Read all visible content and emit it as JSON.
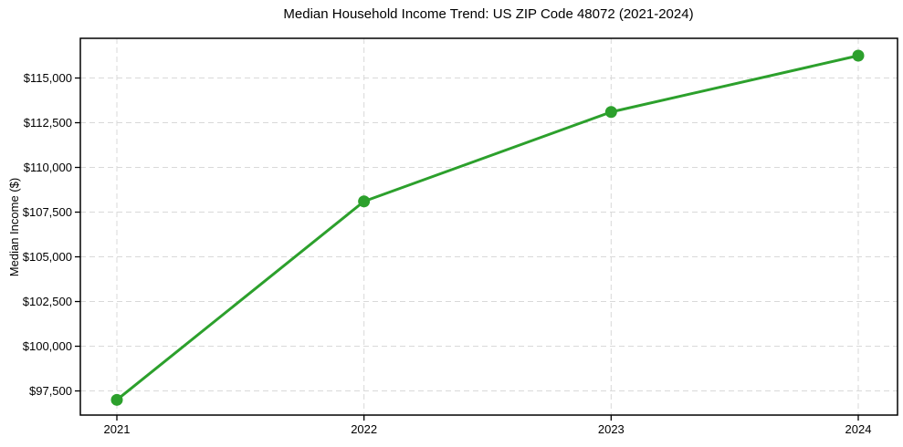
{
  "chart_data": {
    "type": "line",
    "title": "Median Household Income Trend: US ZIP Code 48072 (2021-2024)",
    "xlabel": "",
    "ylabel": "Median Income ($)",
    "categories": [
      "2021",
      "2022",
      "2023",
      "2024"
    ],
    "series": [
      {
        "name": "Median Household Income",
        "values": [
          97000,
          108100,
          113100,
          116250
        ],
        "color": "#2ca02c",
        "marker": "circle"
      }
    ],
    "y_ticks": [
      {
        "value": 97500,
        "label": "$97,500"
      },
      {
        "value": 100000,
        "label": "$100,000"
      },
      {
        "value": 102500,
        "label": "$102,500"
      },
      {
        "value": 105000,
        "label": "$105,000"
      },
      {
        "value": 107500,
        "label": "$107,500"
      },
      {
        "value": 110000,
        "label": "$110,000"
      },
      {
        "value": 112500,
        "label": "$112,500"
      },
      {
        "value": 115000,
        "label": "$115,000"
      }
    ],
    "ylim": [
      96150,
      117220
    ],
    "grid": true,
    "grid_style": "dashed",
    "grid_color": "#d9d9d9",
    "spine_color": "#000000",
    "text_color": "#000000",
    "background": "#ffffff",
    "legend_position": "none"
  }
}
